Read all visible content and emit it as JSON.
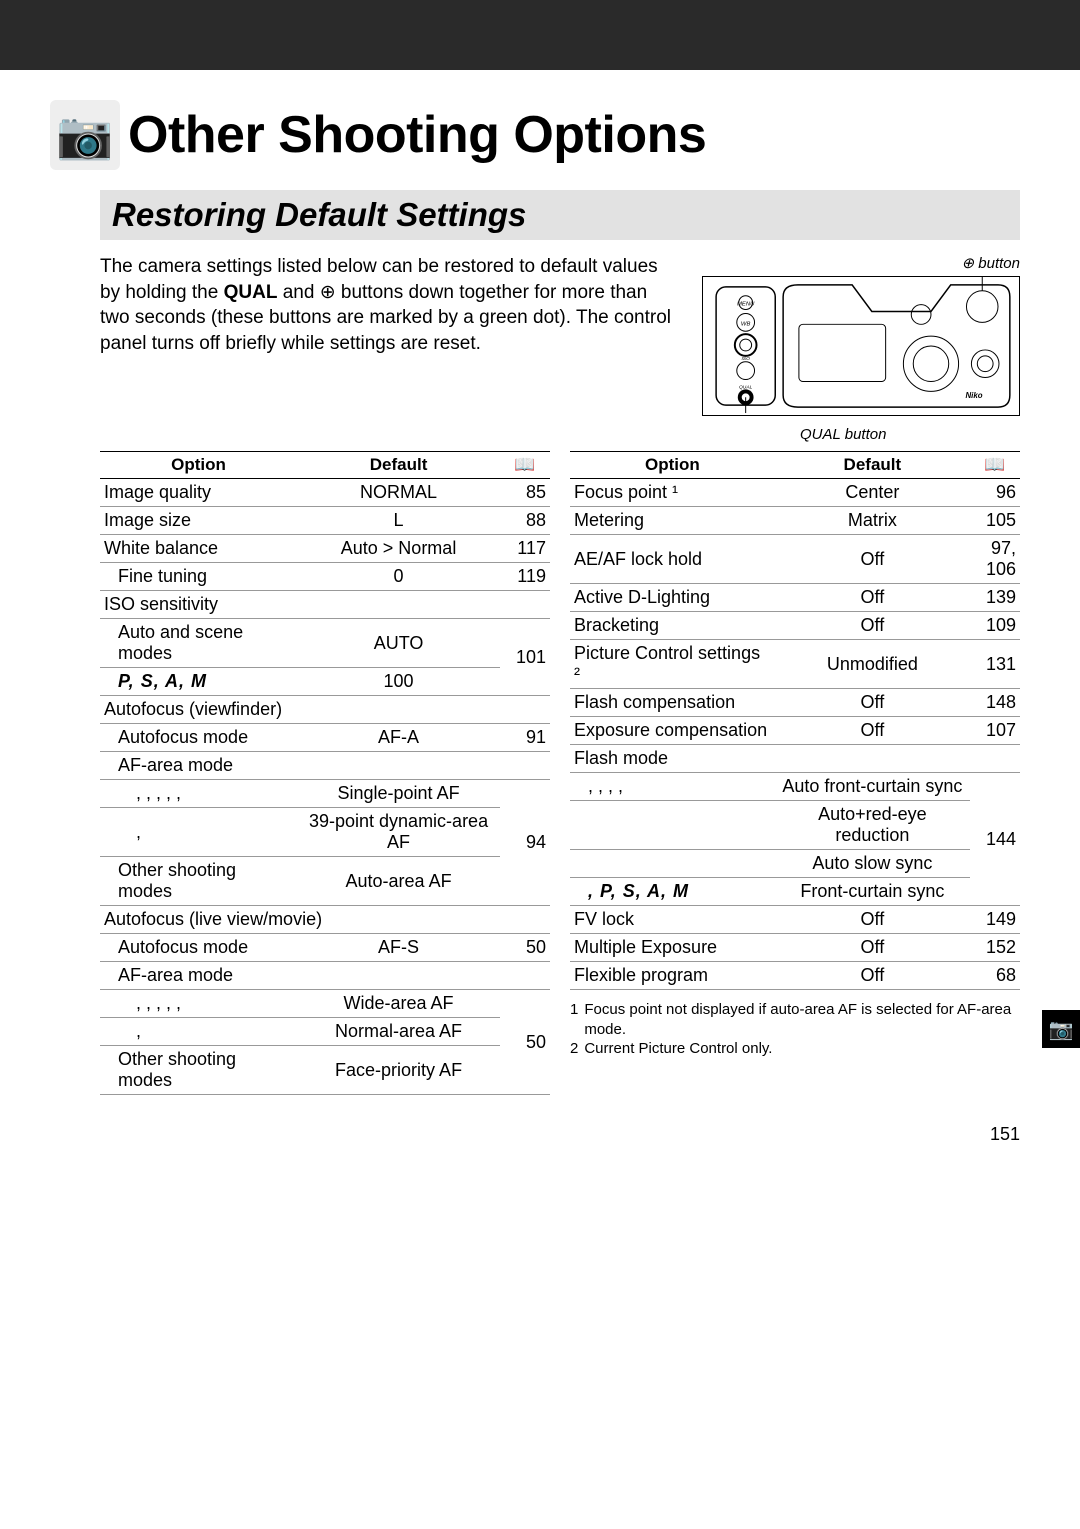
{
  "topbar_color": "#2a2a2a",
  "title_icon_glyph": "📷",
  "title": "Other Shooting Options",
  "section_heading": "Restoring Default Settings",
  "intro_prefix": "The camera settings listed below can be restored to default values by holding the ",
  "intro_bold1": "QUAL",
  "intro_mid": " and ",
  "intro_glyph": "⊕",
  "intro_suffix": " buttons down together for more than two seconds (these buttons are marked by a green dot).  The control panel turns off briefly while settings are reset.",
  "button_label_top": "⊕ button",
  "button_label_bottom": "QUAL button",
  "headers": {
    "option": "Option",
    "default": "Default",
    "page_glyph": "📖"
  },
  "left_rows": [
    {
      "opt": "Image quality",
      "def": "NORMAL",
      "pg": "85",
      "ind": 0
    },
    {
      "opt": "Image size",
      "def": "L",
      "pg": "88",
      "ind": 0
    },
    {
      "opt": "White balance",
      "def": "Auto > Normal",
      "pg": "117",
      "ind": 0
    },
    {
      "opt": "Fine tuning",
      "def": "0",
      "pg": "119",
      "ind": 1
    },
    {
      "opt": "ISO sensitivity",
      "def": "",
      "pg": "",
      "ind": 0,
      "span": true
    },
    {
      "opt": "Auto and scene modes",
      "def": "AUTO",
      "pg": "101",
      "ind": 1,
      "rowspan_pg": 2
    },
    {
      "opt": "P, S, A, M",
      "def": "100",
      "pg": "",
      "ind": 1,
      "psam": true,
      "no_pg": true
    },
    {
      "opt": "Autofocus (viewfinder)",
      "def": "",
      "pg": "",
      "ind": 0,
      "span": true
    },
    {
      "opt": "Autofocus mode",
      "def": "AF-A",
      "pg": "91",
      "ind": 1
    },
    {
      "opt": "AF-area mode",
      "def": "",
      "pg": "",
      "ind": 1,
      "span": true
    },
    {
      "opt": ",  ,  ,  ,  ,",
      "def": "Single-point AF",
      "pg": "94",
      "ind": 2,
      "rowspan_pg": 3,
      "ticks": true
    },
    {
      "opt": ",",
      "def": "39-point dynamic-area AF",
      "pg": "",
      "ind": 2,
      "no_pg": true,
      "ticks": true
    },
    {
      "opt": "Other shooting modes",
      "def": "Auto-area AF",
      "pg": "",
      "ind": 1,
      "no_pg": true
    },
    {
      "opt": "Autofocus (live view/movie)",
      "def": "",
      "pg": "",
      "ind": 0,
      "span": true
    },
    {
      "opt": "Autofocus mode",
      "def": "AF-S",
      "pg": "50",
      "ind": 1
    },
    {
      "opt": "AF-area mode",
      "def": "",
      "pg": "",
      "ind": 1,
      "span": true
    },
    {
      "opt": ",  ,  ,  ,  ,",
      "def": "Wide-area AF",
      "pg": "50",
      "ind": 2,
      "rowspan_pg": 3,
      "ticks": true
    },
    {
      "opt": ",",
      "def": "Normal-area AF",
      "pg": "",
      "ind": 2,
      "no_pg": true,
      "ticks": true
    },
    {
      "opt": "Other shooting modes",
      "def": "Face-priority AF",
      "pg": "",
      "ind": 1,
      "no_pg": true
    }
  ],
  "right_rows": [
    {
      "opt": "Focus point ¹",
      "def": "Center",
      "pg": "96",
      "ind": 0
    },
    {
      "opt": "Metering",
      "def": "Matrix",
      "pg": "105",
      "ind": 0
    },
    {
      "opt": "AE/AF lock hold",
      "def": "Off",
      "pg": "97, 106",
      "ind": 0
    },
    {
      "opt": "Active D-Lighting",
      "def": "Off",
      "pg": "139",
      "ind": 0
    },
    {
      "opt": "Bracketing",
      "def": "Off",
      "pg": "109",
      "ind": 0
    },
    {
      "opt": "Picture Control settings ²",
      "def": "Unmodified",
      "pg": "131",
      "ind": 0
    },
    {
      "opt": "Flash compensation",
      "def": "Off",
      "pg": "148",
      "ind": 0
    },
    {
      "opt": "Exposure compensation",
      "def": "Off",
      "pg": "107",
      "ind": 0
    },
    {
      "opt": "Flash mode",
      "def": "",
      "pg": "",
      "ind": 0,
      "span": true
    },
    {
      "opt": ",  ,  ,  ,",
      "def": "Auto front-curtain sync",
      "pg": "144",
      "ind": 1,
      "rowspan_pg": 4,
      "ticks": true
    },
    {
      "opt": "",
      "def": "Auto+red-eye reduction",
      "pg": "",
      "ind": 1,
      "no_pg": true
    },
    {
      "opt": "",
      "def": "Auto slow sync",
      "pg": "",
      "ind": 1,
      "no_pg": true
    },
    {
      "opt": ", P, S, A, M",
      "def": "Front-curtain sync",
      "pg": "",
      "ind": 1,
      "psam": true,
      "no_pg": true
    },
    {
      "opt": "FV lock",
      "def": "Off",
      "pg": "149",
      "ind": 0
    },
    {
      "opt": "Multiple Exposure",
      "def": "Off",
      "pg": "152",
      "ind": 0
    },
    {
      "opt": "Flexible program",
      "def": "Off",
      "pg": "68",
      "ind": 0
    }
  ],
  "footnotes": [
    {
      "n": "1",
      "t": "Focus point not displayed if auto-area AF is selected for AF-area mode."
    },
    {
      "n": "2",
      "t": "Current Picture Control only."
    }
  ],
  "page_number": "151",
  "side_tab_glyph": "📷"
}
